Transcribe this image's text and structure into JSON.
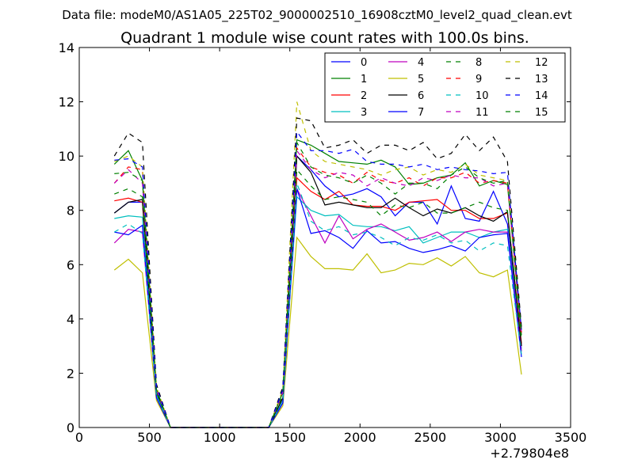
{
  "header": {
    "suptitle": "Data file: modeM0/AS1A05_225T02_9000002510_16908cztM0_level2_quad_clean.evt"
  },
  "chart_data": {
    "type": "line",
    "title": "Quadrant 1 module wise count rates with 100.0s bins.",
    "xlabel": "",
    "ylabel": "",
    "x_offset_label": "+2.79804e8",
    "xlim": [
      0,
      3500
    ],
    "ylim": [
      0,
      14
    ],
    "xticks": [
      0,
      500,
      1000,
      1500,
      2000,
      2500,
      3000,
      3500
    ],
    "yticks": [
      0,
      2,
      4,
      6,
      8,
      10,
      12,
      14
    ],
    "grid": false,
    "legend": {
      "placement": "top-right",
      "columns": 4
    },
    "x": [
      250,
      350,
      450,
      550,
      650,
      750,
      850,
      950,
      1050,
      1150,
      1250,
      1350,
      1450,
      1550,
      1650,
      1750,
      1850,
      1950,
      2050,
      2150,
      2250,
      2350,
      2450,
      2550,
      2650,
      2750,
      2850,
      2950,
      3050,
      3150
    ],
    "series": [
      {
        "name": "0",
        "color": "#0000ff",
        "dash": "solid",
        "values": [
          7.9,
          8.3,
          8.3,
          1.2,
          0,
          0,
          0,
          0,
          0,
          0,
          0,
          0,
          1.0,
          10.0,
          9.5,
          8.9,
          8.5,
          8.6,
          8.8,
          8.5,
          7.8,
          8.3,
          8.3,
          7.5,
          8.9,
          7.7,
          7.6,
          8.7,
          7.5,
          3.0
        ]
      },
      {
        "name": "1",
        "color": "#008000",
        "dash": "solid",
        "values": [
          9.7,
          10.2,
          9.1,
          1.4,
          0,
          0,
          0,
          0,
          0,
          0,
          0,
          0,
          1.3,
          10.6,
          10.4,
          10.1,
          9.8,
          9.75,
          9.7,
          9.85,
          9.6,
          8.95,
          9.0,
          9.2,
          9.3,
          9.75,
          8.9,
          9.1,
          8.95,
          3.4
        ]
      },
      {
        "name": "2",
        "color": "#ff0000",
        "dash": "solid",
        "values": [
          8.35,
          8.45,
          8.3,
          1.3,
          0,
          0,
          0,
          0,
          0,
          0,
          0,
          0,
          1.1,
          9.2,
          8.7,
          8.4,
          8.7,
          8.2,
          8.15,
          8.15,
          8.0,
          8.3,
          8.35,
          8.4,
          8.0,
          8.0,
          7.7,
          7.7,
          7.9,
          3.1
        ]
      },
      {
        "name": "3",
        "color": "#00bfbf",
        "dash": "solid",
        "values": [
          7.7,
          7.8,
          7.75,
          1.2,
          0,
          0,
          0,
          0,
          0,
          0,
          0,
          0,
          1.0,
          8.5,
          8.0,
          7.8,
          7.85,
          7.45,
          7.4,
          7.4,
          7.25,
          7.4,
          6.8,
          7.0,
          7.2,
          7.2,
          7.0,
          7.2,
          7.3,
          2.9
        ]
      },
      {
        "name": "4",
        "color": "#bf00bf",
        "dash": "solid",
        "values": [
          6.8,
          7.3,
          7.2,
          1.1,
          0,
          0,
          0,
          0,
          0,
          0,
          0,
          0,
          0.9,
          8.8,
          7.8,
          6.8,
          7.8,
          6.95,
          7.3,
          7.5,
          7.2,
          6.9,
          7.0,
          7.2,
          6.85,
          7.2,
          7.3,
          7.2,
          7.2,
          2.8
        ]
      },
      {
        "name": "5",
        "color": "#bfbf00",
        "dash": "solid",
        "values": [
          5.8,
          6.2,
          5.7,
          1.0,
          0,
          0,
          0,
          0,
          0,
          0,
          0,
          0,
          0.8,
          7.0,
          6.3,
          5.85,
          5.85,
          5.8,
          6.4,
          5.7,
          5.8,
          6.05,
          6.0,
          6.25,
          5.95,
          6.3,
          5.7,
          5.55,
          5.8,
          1.95
        ]
      },
      {
        "name": "6",
        "color": "#000000",
        "dash": "solid",
        "values": [
          7.9,
          8.3,
          8.4,
          1.3,
          0,
          0,
          0,
          0,
          0,
          0,
          0,
          0,
          1.1,
          10.0,
          9.4,
          8.2,
          8.3,
          8.2,
          8.1,
          8.1,
          8.45,
          8.1,
          7.8,
          8.05,
          7.9,
          8.1,
          7.8,
          7.6,
          7.95,
          3.0
        ]
      },
      {
        "name": "7",
        "color": "#0000ff",
        "dash": "solid",
        "values": [
          7.2,
          7.1,
          7.45,
          1.1,
          0,
          0,
          0,
          0,
          0,
          0,
          0,
          0,
          0.9,
          8.8,
          7.15,
          7.25,
          7.0,
          6.6,
          7.25,
          6.8,
          6.85,
          6.6,
          6.45,
          6.55,
          6.7,
          6.5,
          7.0,
          7.1,
          7.15,
          2.6
        ]
      },
      {
        "name": "8",
        "color": "#008000",
        "dash": "dashed",
        "values": [
          8.6,
          8.8,
          8.5,
          1.3,
          0,
          0,
          0,
          0,
          0,
          0,
          0,
          0,
          1.2,
          9.5,
          8.9,
          8.4,
          8.5,
          8.4,
          8.3,
          7.8,
          8.2,
          8.1,
          8.3,
          7.9,
          7.9,
          8.1,
          8.3,
          8.1,
          8.0,
          3.2
        ]
      },
      {
        "name": "9",
        "color": "#ff0000",
        "dash": "dashed",
        "values": [
          9.0,
          9.6,
          9.5,
          1.4,
          0,
          0,
          0,
          0,
          0,
          0,
          0,
          0,
          1.3,
          10.3,
          9.6,
          9.4,
          9.3,
          9.0,
          9.4,
          9.1,
          9.0,
          9.2,
          8.9,
          9.2,
          9.2,
          9.4,
          9.0,
          9.1,
          9.0,
          3.5
        ]
      },
      {
        "name": "10",
        "color": "#00bfbf",
        "dash": "dashed",
        "values": [
          7.2,
          7.5,
          7.15,
          1.2,
          0,
          0,
          0,
          0,
          0,
          0,
          0,
          0,
          1.0,
          9.0,
          7.6,
          7.25,
          7.4,
          7.1,
          7.2,
          7.0,
          6.7,
          7.0,
          6.9,
          7.1,
          6.8,
          6.9,
          6.5,
          6.8,
          6.7,
          2.7
        ]
      },
      {
        "name": "11",
        "color": "#bf00bf",
        "dash": "dashed",
        "values": [
          9.0,
          9.5,
          9.0,
          1.4,
          0,
          0,
          0,
          0,
          0,
          0,
          0,
          0,
          1.3,
          10.2,
          9.5,
          9.2,
          9.4,
          9.3,
          8.9,
          9.2,
          9.0,
          8.9,
          9.2,
          9.1,
          9.3,
          9.2,
          9.2,
          8.9,
          9.0,
          3.4
        ]
      },
      {
        "name": "12",
        "color": "#bfbf00",
        "dash": "dashed",
        "values": [
          9.8,
          10.0,
          9.6,
          1.5,
          0,
          0,
          0,
          0,
          0,
          0,
          0,
          0,
          1.4,
          12.0,
          10.2,
          9.8,
          9.7,
          9.6,
          9.5,
          9.3,
          9.5,
          9.6,
          9.3,
          9.5,
          9.4,
          9.7,
          9.3,
          9.2,
          9.1,
          3.6
        ]
      },
      {
        "name": "13",
        "color": "#000000",
        "dash": "dashed",
        "values": [
          10.0,
          10.85,
          10.5,
          1.6,
          0,
          0,
          0,
          0,
          0,
          0,
          0,
          0,
          1.5,
          11.4,
          11.3,
          10.3,
          10.4,
          10.6,
          10.1,
          10.4,
          10.4,
          10.2,
          10.5,
          9.9,
          10.1,
          10.8,
          10.2,
          10.7,
          9.8,
          3.7
        ]
      },
      {
        "name": "14",
        "color": "#0000ff",
        "dash": "dashed",
        "values": [
          9.85,
          9.9,
          9.6,
          1.5,
          0,
          0,
          0,
          0,
          0,
          0,
          0,
          0,
          1.4,
          10.9,
          10.2,
          10.2,
          10.1,
          10.25,
          9.8,
          9.7,
          9.7,
          9.6,
          9.7,
          9.5,
          9.6,
          9.5,
          9.45,
          9.35,
          9.4,
          3.6
        ]
      },
      {
        "name": "15",
        "color": "#008000",
        "dash": "dashed",
        "values": [
          9.35,
          9.4,
          9.1,
          1.4,
          0,
          0,
          0,
          0,
          0,
          0,
          0,
          0,
          1.3,
          10.5,
          9.6,
          9.3,
          9.2,
          9.0,
          9.3,
          9.0,
          8.6,
          9.0,
          9.0,
          8.8,
          9.3,
          9.6,
          9.2,
          9.0,
          9.1,
          3.5
        ]
      }
    ]
  }
}
